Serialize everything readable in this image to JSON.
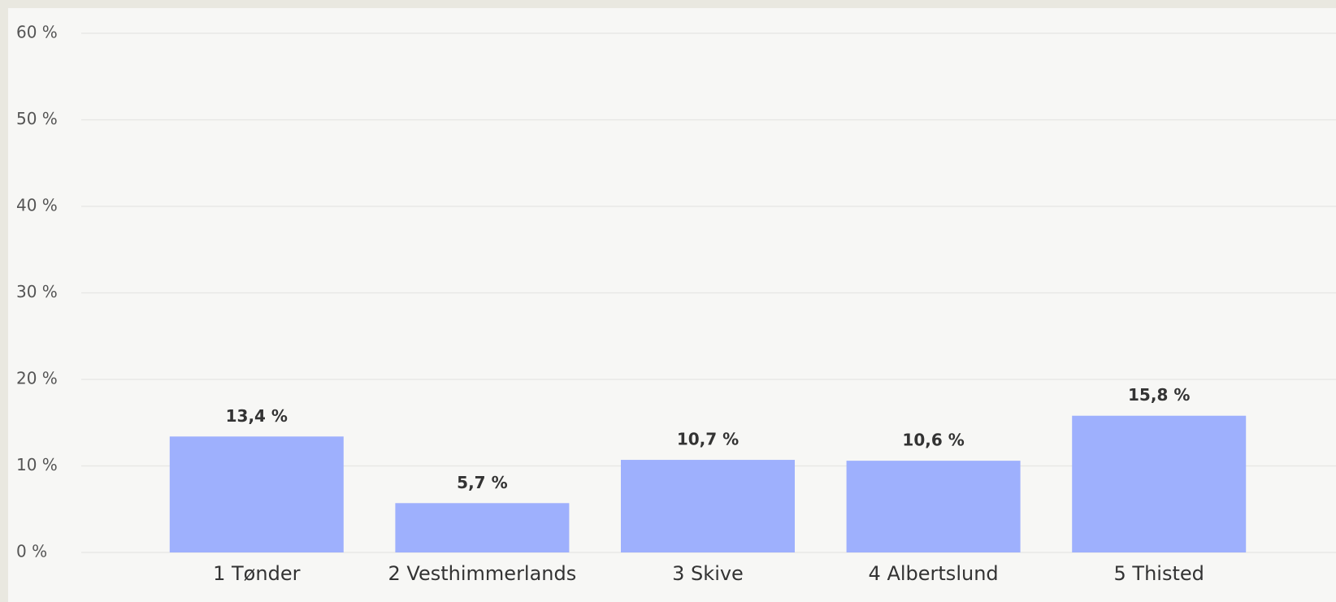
{
  "chart_data": {
    "type": "bar",
    "categories": [
      "1 Tønder",
      "2 Vesthimmerlands",
      "3 Skive",
      "4 Albertslund",
      "5 Thisted"
    ],
    "values": [
      13.4,
      5.7,
      10.7,
      10.6,
      15.8
    ],
    "value_labels": [
      "13,4 %",
      "5,7 %",
      "10,7 %",
      "10,6 %",
      "15,8 %"
    ],
    "color": "#9eb0fd",
    "ylim": [
      0,
      60
    ],
    "yticks": [
      {
        "value": 0,
        "label": "0 %"
      },
      {
        "value": 10,
        "label": "10 %"
      },
      {
        "value": 20,
        "label": "20 %"
      },
      {
        "value": 30,
        "label": "30 %"
      },
      {
        "value": 40,
        "label": "40 %"
      },
      {
        "value": 50,
        "label": "50 %"
      },
      {
        "value": 60,
        "label": "60 %"
      }
    ],
    "grid": true
  }
}
